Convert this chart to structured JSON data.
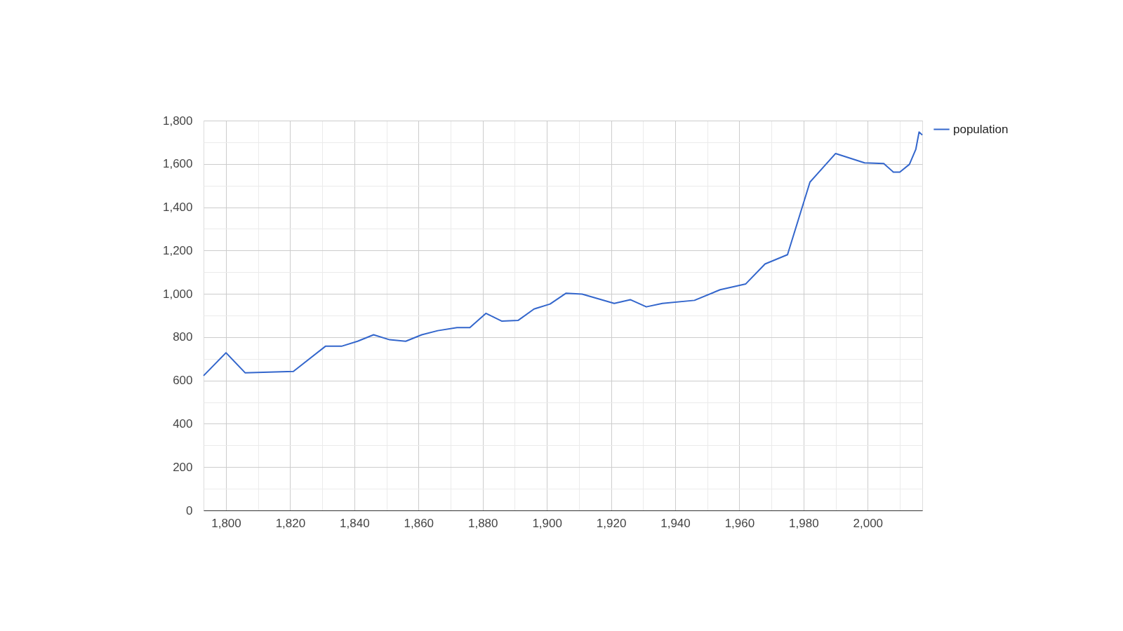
{
  "chart_data": {
    "type": "line",
    "x": [
      1793,
      1800,
      1806,
      1821,
      1831,
      1836,
      1841,
      1846,
      1851,
      1856,
      1861,
      1866,
      1872,
      1876,
      1881,
      1886,
      1891,
      1896,
      1901,
      1906,
      1911,
      1921,
      1926,
      1931,
      1936,
      1946,
      1954,
      1962,
      1968,
      1975,
      1982,
      1990,
      1999,
      2005,
      2008,
      2010,
      2013,
      2015,
      2016,
      2017
    ],
    "series": [
      {
        "name": "population",
        "color": "#3366cc",
        "values": [
          622,
          728,
          635,
          642,
          758,
          758,
          781,
          811,
          788,
          781,
          811,
          830,
          844,
          844,
          910,
          874,
          877,
          930,
          953,
          1003,
          999,
          956,
          973,
          940,
          956,
          970,
          1019,
          1046,
          1138,
          1181,
          1516,
          1648,
          1605,
          1602,
          1562,
          1562,
          1598,
          1668,
          1747,
          1734
        ]
      }
    ],
    "xlim": [
      1793,
      2017
    ],
    "xticks": [
      {
        "value": 1800,
        "label": "1,800"
      },
      {
        "value": 1810,
        "label": null
      },
      {
        "value": 1820,
        "label": "1,820"
      },
      {
        "value": 1830,
        "label": null
      },
      {
        "value": 1840,
        "label": "1,840"
      },
      {
        "value": 1850,
        "label": null
      },
      {
        "value": 1860,
        "label": "1,860"
      },
      {
        "value": 1870,
        "label": null
      },
      {
        "value": 1880,
        "label": "1,880"
      },
      {
        "value": 1890,
        "label": null
      },
      {
        "value": 1900,
        "label": "1,900"
      },
      {
        "value": 1910,
        "label": null
      },
      {
        "value": 1920,
        "label": "1,920"
      },
      {
        "value": 1930,
        "label": null
      },
      {
        "value": 1940,
        "label": "1,940"
      },
      {
        "value": 1950,
        "label": null
      },
      {
        "value": 1960,
        "label": "1,960"
      },
      {
        "value": 1970,
        "label": null
      },
      {
        "value": 1980,
        "label": "1,980"
      },
      {
        "value": 1990,
        "label": null
      },
      {
        "value": 2000,
        "label": "2,000"
      },
      {
        "value": 2010,
        "label": null
      }
    ],
    "ylim": [
      0,
      1800
    ],
    "yticks": [
      0,
      {
        "value": 100,
        "label": null
      },
      200,
      {
        "value": 300,
        "label": null
      },
      400,
      {
        "value": 500,
        "label": null
      },
      600,
      {
        "value": 700,
        "label": null
      },
      800,
      {
        "value": 900,
        "label": null
      },
      {
        "value": 1000,
        "label": "1,000"
      },
      {
        "value": 1100,
        "label": null
      },
      {
        "value": 1200,
        "label": "1,200"
      },
      {
        "value": 1300,
        "label": null
      },
      {
        "value": 1400,
        "label": "1,400"
      },
      {
        "value": 1500,
        "label": null
      },
      {
        "value": 1600,
        "label": "1,600"
      },
      {
        "value": 1700,
        "label": null
      },
      {
        "value": 1800,
        "label": "1,800"
      }
    ],
    "grid": true,
    "legend": "top right",
    "marker": "none",
    "line_style": "solid"
  }
}
